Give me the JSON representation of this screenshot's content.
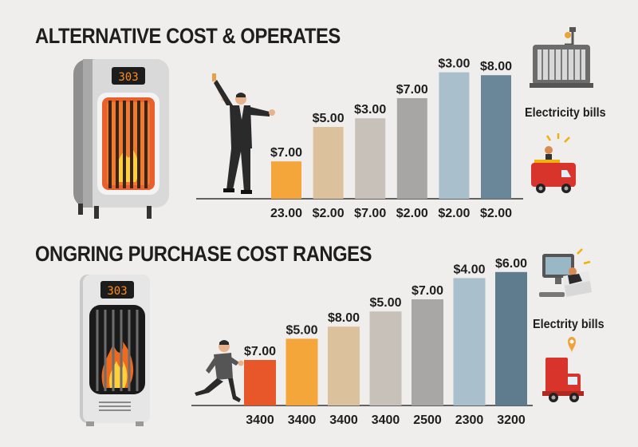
{
  "colors": {
    "background": "#efeeec",
    "bar_top": [
      "#f4a63a",
      "#dcc29c",
      "#c8c1b9",
      "#a8a6a4",
      "#a9bfcc",
      "#6a8799"
    ],
    "bar_bottom": [
      "#e8572a",
      "#f4a63a",
      "#dcc29c",
      "#c8c1b9",
      "#a9a7a5",
      "#a9bfcc",
      "#5f7c8f"
    ]
  },
  "icons": {
    "top": [
      "space-heater-icon",
      "man-cheering-icon",
      "air-conditioner-icon",
      "delivery-truck-icon"
    ],
    "bottom": [
      "space-heater-icon",
      "man-running-icon",
      "computer-monitor-icon",
      "delivery-truck-icon"
    ]
  },
  "chart_data": [
    {
      "type": "bar",
      "title": "ALTERNATIVE COST & OPERATES",
      "side_label": "Electricity bills",
      "categories": [
        "23.00",
        "$2.00",
        "$7.00",
        "$2.00",
        "$2.00",
        "$2.00"
      ],
      "value_labels": [
        "$7.00",
        "$5.00",
        "$3.00",
        "$7.00",
        "$3.00",
        "$8.00"
      ],
      "values": [
        1.3,
        2.5,
        2.8,
        3.5,
        4.4,
        4.3
      ]
    },
    {
      "type": "bar",
      "title": "ONGRING PURCHASE COST RANGES",
      "side_label": "Electrity bills",
      "categories": [
        "3400",
        "3400",
        "3400",
        "3400",
        "2500",
        "2300",
        "3200"
      ],
      "value_labels": [
        "$7.00",
        "$5.00",
        "$8.00",
        "$5.00",
        "$7.00",
        "$4.00",
        "$6.00"
      ],
      "values": [
        1.5,
        2.2,
        2.6,
        3.1,
        3.5,
        4.2,
        4.4
      ]
    }
  ]
}
